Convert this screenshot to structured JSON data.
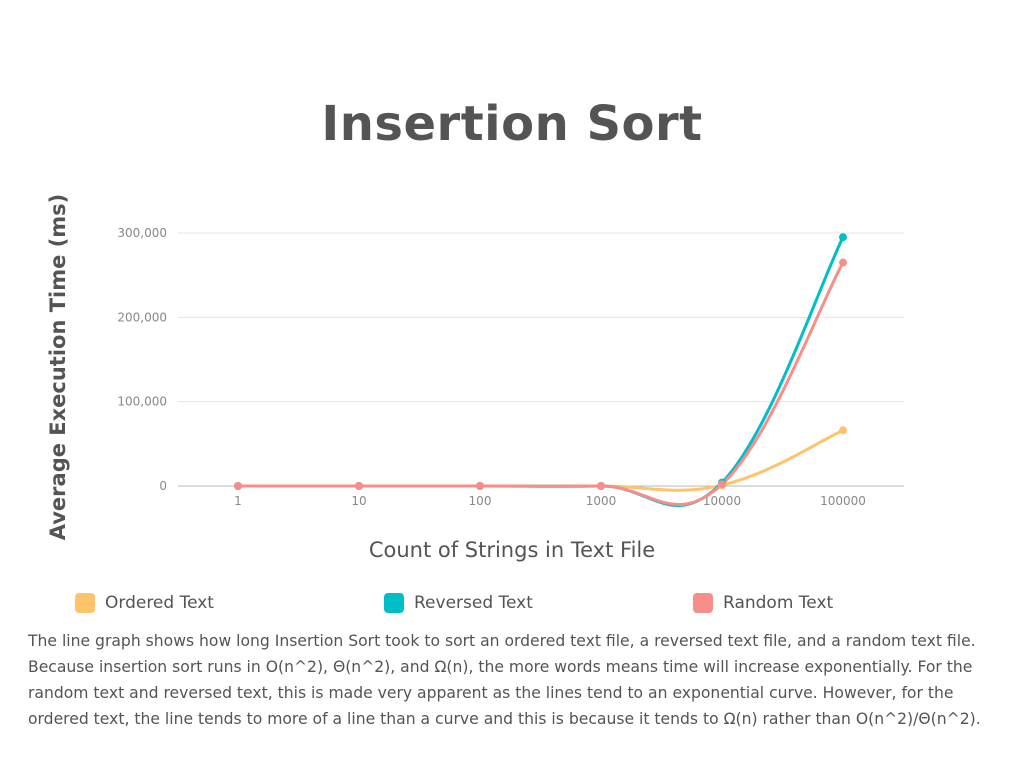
{
  "chart_data": {
    "type": "line",
    "title": "Insertion Sort",
    "xlabel": "Count of Strings in Text File",
    "ylabel": "Average Execution Time (ms)",
    "categories": [
      "1",
      "10",
      "100",
      "1000",
      "10000",
      "100000"
    ],
    "y_ticks": [
      "0",
      "100,000",
      "200,000",
      "300,000"
    ],
    "ylim": [
      0,
      300000
    ],
    "grid": true,
    "legend_position": "bottom",
    "series": [
      {
        "name": "Ordered Text",
        "color": "#FFC36A",
        "values": [
          0,
          0,
          0,
          0,
          1000,
          66000
        ]
      },
      {
        "name": "Reversed Text",
        "color": "#00BEC8",
        "values": [
          0,
          0,
          0,
          0,
          4000,
          295000
        ]
      },
      {
        "name": "Random Text",
        "color": "#F88E8A",
        "values": [
          0,
          0,
          0,
          0,
          2000,
          265000
        ]
      }
    ]
  },
  "caption": "The line graph shows how long Insertion Sort took to sort an ordered text file, a reversed text file, and a random text file. Because insertion sort runs in O(n^2), Θ(n^2), and Ω(n), the more words means time will increase exponentially. For the random text and reversed text, this is made very apparent as the lines tend to an exponential curve. However, for the ordered text, the line tends to more of a line than a curve and this is because it tends to Ω(n) rather than O(n^2)/Θ(n^2)."
}
